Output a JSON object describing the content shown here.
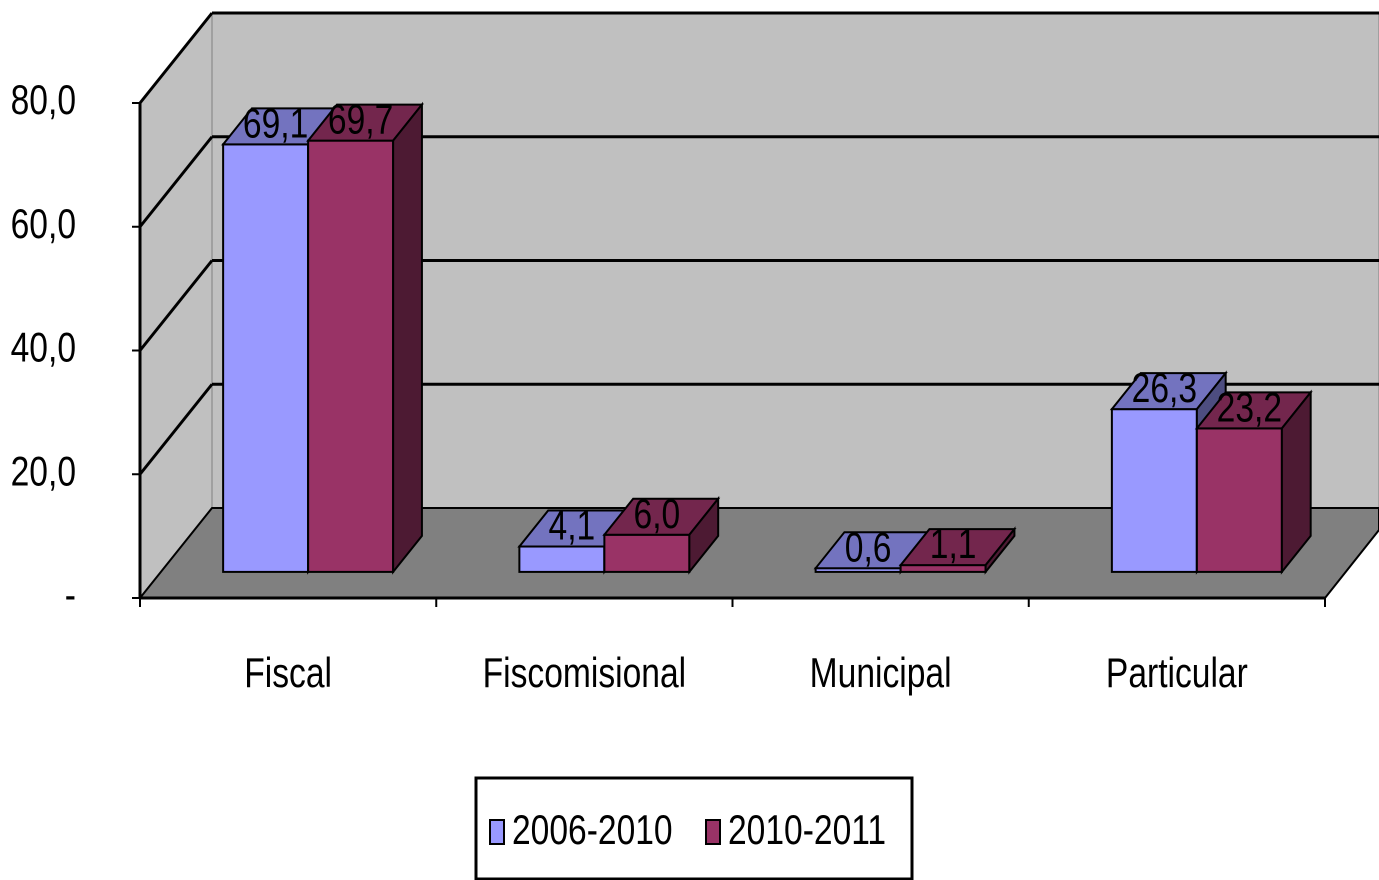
{
  "chart_data": {
    "type": "bar3d",
    "categories": [
      "Fiscal",
      "Fiscomisional",
      "Municipal",
      "Particular"
    ],
    "series": [
      {
        "name": "2006-2010",
        "color": "#9999ff",
        "values": [
          69.1,
          4.1,
          0.6,
          26.3
        ],
        "value_labels": [
          "69,1",
          "4,1",
          "0,6",
          "26,3"
        ]
      },
      {
        "name": "2010-2011",
        "color": "#993366",
        "values": [
          69.7,
          6.0,
          1.1,
          23.2
        ],
        "value_labels": [
          "69,7",
          "6,0",
          "1,1",
          "23,2"
        ]
      }
    ],
    "ylim": [
      0,
      80
    ],
    "yticks": [
      {
        "value": 0,
        "label": "-"
      },
      {
        "value": 20,
        "label": "20,0"
      },
      {
        "value": 40,
        "label": "40,0"
      },
      {
        "value": 60,
        "label": "60,0"
      },
      {
        "value": 80,
        "label": "80,0"
      }
    ],
    "grid": true,
    "legend": "bottom"
  }
}
